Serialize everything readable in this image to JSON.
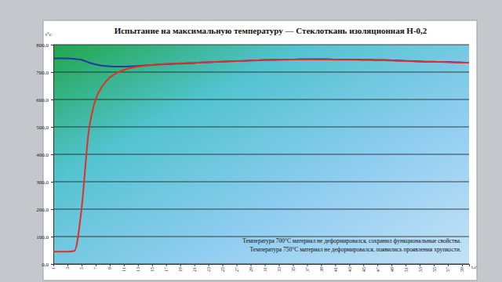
{
  "chart_data": {
    "type": "line",
    "title": "Испытание на максимальную температуру — Стеклоткань изоляционная Н-0,2",
    "y_label": "t°c",
    "x_label": "t,c",
    "annotations": [
      "Температура 700°С материал не деформировался, сохранил функциональные свойства.",
      "Температура 750°С материал не деформировался, появились проявления хрупкости."
    ],
    "x": [
      1,
      2,
      3,
      4,
      5,
      6,
      7,
      8,
      9,
      10,
      11,
      12,
      13,
      14,
      15,
      16,
      17,
      18,
      19,
      20,
      21,
      22,
      23,
      24,
      25,
      26,
      27,
      28,
      29,
      30,
      31,
      32,
      33,
      34,
      35,
      36,
      37,
      38,
      39,
      40,
      41,
      42,
      43,
      44,
      45,
      46,
      47,
      48,
      49,
      50,
      51,
      52,
      53,
      54,
      55,
      56,
      57,
      58,
      59,
      60
    ],
    "series": [
      {
        "color": "#26389a",
        "values": [
          750,
          750,
          750,
          748,
          745,
          735,
          728,
          723,
          721,
          720,
          720,
          721,
          722,
          724,
          726,
          728,
          729,
          730,
          731,
          732,
          733,
          735,
          736,
          737,
          738,
          739,
          740,
          741,
          742,
          743,
          744,
          745,
          745,
          746,
          746,
          747,
          747,
          747,
          747,
          747,
          746,
          746,
          746,
          746,
          745,
          745,
          744,
          744,
          743,
          742,
          741,
          740,
          739,
          738,
          738,
          737,
          737,
          736,
          735,
          734
        ]
      },
      {
        "color": "#e0302a",
        "values": [
          45,
          45,
          45,
          48,
          200,
          480,
          600,
          650,
          680,
          697,
          708,
          715,
          720,
          723,
          726,
          728,
          730,
          731,
          732,
          733,
          734,
          735,
          736,
          737,
          738,
          739,
          740,
          741,
          742,
          743,
          744,
          744,
          745,
          745,
          746,
          746,
          746,
          746,
          746,
          746,
          745,
          745,
          745,
          745,
          744,
          744,
          743,
          743,
          742,
          741,
          740,
          739,
          738,
          738,
          737,
          737,
          736,
          735,
          734,
          734
        ]
      }
    ],
    "xlim": [
      1,
      60
    ],
    "xticks": [
      1,
      3,
      5,
      7,
      9,
      11,
      13,
      15,
      17,
      19,
      21,
      23,
      25,
      27,
      29,
      31,
      33,
      35,
      37,
      39,
      41,
      43,
      45,
      47,
      49,
      51,
      53,
      55,
      57,
      59
    ],
    "ylim": [
      0,
      800
    ],
    "yticks": [
      {
        "value": 0,
        "label": "0,0"
      },
      {
        "value": 100,
        "label": "100,0"
      },
      {
        "value": 200,
        "label": "200,0"
      },
      {
        "value": 300,
        "label": "300,0"
      },
      {
        "value": 400,
        "label": "400,0"
      },
      {
        "value": 500,
        "label": "500,0"
      },
      {
        "value": 600,
        "label": "600,0"
      },
      {
        "value": 700,
        "label": "700,0"
      },
      {
        "value": 800,
        "label": "800,0"
      }
    ],
    "grid": true
  }
}
